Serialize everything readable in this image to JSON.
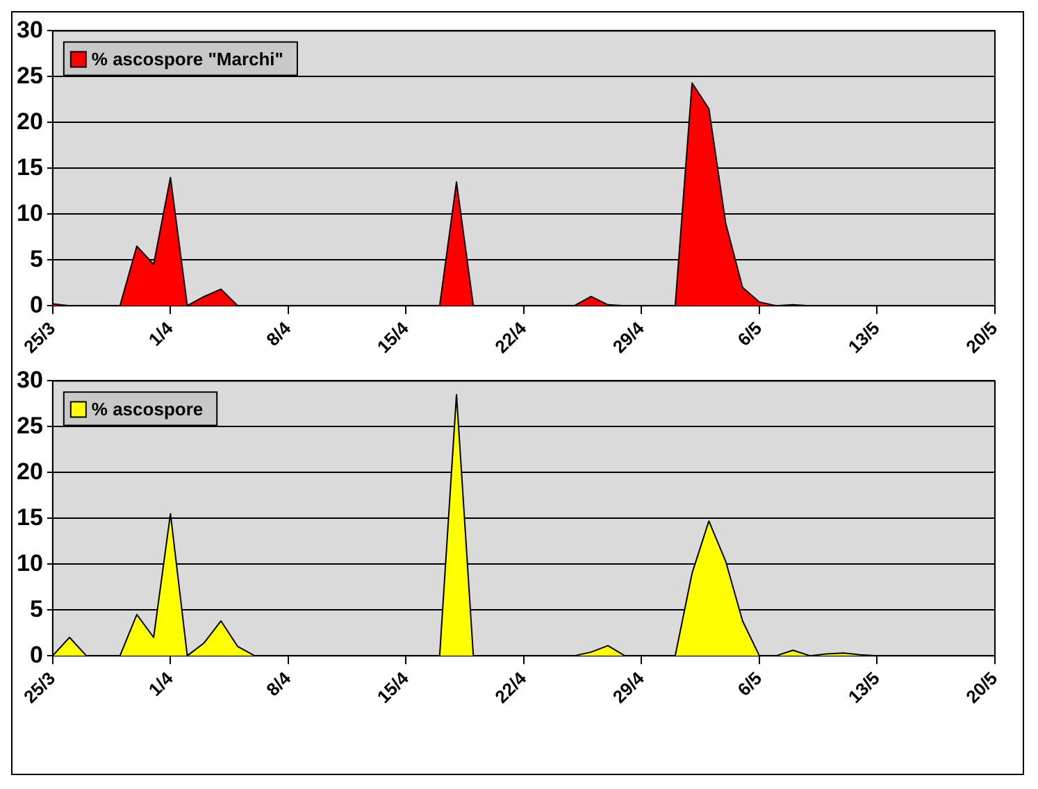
{
  "chart_data": [
    {
      "type": "area",
      "categories": [
        "25/3",
        null,
        null,
        null,
        null,
        null,
        null,
        "1/4",
        null,
        null,
        null,
        null,
        null,
        null,
        "8/4",
        null,
        null,
        null,
        null,
        null,
        null,
        "15/4",
        null,
        null,
        null,
        null,
        null,
        null,
        "22/4",
        null,
        null,
        null,
        null,
        null,
        null,
        "29/4",
        null,
        null,
        null,
        null,
        null,
        null,
        "6/5",
        null,
        null,
        null,
        null,
        null,
        null,
        "13/5",
        null,
        null,
        null,
        null,
        null,
        null,
        "20/5"
      ],
      "series": [
        {
          "name": "% ascospore \"Marchi\"",
          "color": "#ff0000",
          "values": [
            0.2,
            0,
            0,
            0,
            0,
            6.5,
            4.5,
            14,
            0,
            1,
            1.8,
            0,
            0,
            0,
            0,
            0,
            0,
            0,
            0,
            0,
            0,
            0,
            0,
            0,
            13.5,
            0,
            0,
            0,
            0,
            0,
            0,
            0,
            1,
            0.1,
            0,
            0,
            0,
            0,
            24.3,
            21.5,
            9,
            2,
            0.4,
            0,
            0.1,
            0,
            0,
            0,
            0,
            0,
            0,
            0,
            0,
            0,
            0,
            0,
            0
          ]
        }
      ],
      "ylim": [
        0,
        30
      ],
      "yticks": [
        0,
        5,
        10,
        15,
        20,
        25,
        30
      ],
      "grid": "y",
      "legend": "top left"
    },
    {
      "type": "area",
      "categories": [
        "25/3",
        null,
        null,
        null,
        null,
        null,
        null,
        "1/4",
        null,
        null,
        null,
        null,
        null,
        null,
        "8/4",
        null,
        null,
        null,
        null,
        null,
        null,
        "15/4",
        null,
        null,
        null,
        null,
        null,
        null,
        "22/4",
        null,
        null,
        null,
        null,
        null,
        null,
        "29/4",
        null,
        null,
        null,
        null,
        null,
        null,
        "6/5",
        null,
        null,
        null,
        null,
        null,
        null,
        "13/5",
        null,
        null,
        null,
        null,
        null,
        null,
        "20/5"
      ],
      "series": [
        {
          "name": "% ascospore",
          "color": "#ffff00",
          "values": [
            0,
            2,
            0,
            0,
            0,
            4.5,
            2,
            15.5,
            0,
            1.4,
            3.8,
            1,
            0,
            0,
            0,
            0,
            0,
            0,
            0,
            0,
            0,
            0,
            0,
            0,
            28.5,
            0,
            0,
            0,
            0,
            0,
            0,
            0,
            0.4,
            1.1,
            0,
            0,
            0,
            0,
            9,
            14.7,
            10.3,
            3.8,
            0,
            0,
            0.6,
            0,
            0.2,
            0.3,
            0.1,
            0,
            0,
            0,
            0,
            0,
            0,
            0,
            0
          ]
        }
      ],
      "ylim": [
        0,
        30
      ],
      "yticks": [
        0,
        5,
        10,
        15,
        20,
        25,
        30
      ],
      "grid": "y",
      "legend": "top left"
    }
  ]
}
